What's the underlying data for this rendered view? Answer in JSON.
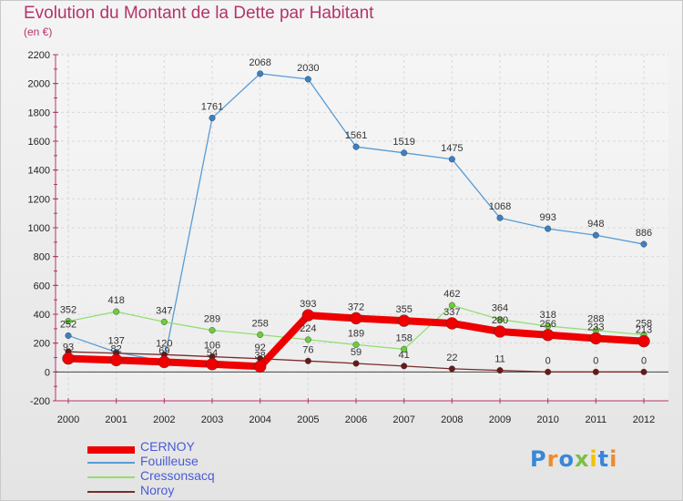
{
  "chart_data": {
    "type": "line",
    "title": "Evolution du Montant de la Dette par Habitant",
    "subtitle": "(en €)",
    "x": [
      "2000",
      "2001",
      "2002",
      "2003",
      "2004",
      "2005",
      "2006",
      "2007",
      "2008",
      "2009",
      "2010",
      "2011",
      "2012"
    ],
    "ylim": [
      -200,
      2200
    ],
    "yticks": [
      -200,
      0,
      200,
      400,
      600,
      800,
      1000,
      1200,
      1400,
      1600,
      1800,
      2000,
      2200
    ],
    "grid": true,
    "legend_position": "bottom-left",
    "series": [
      {
        "name": "Fouilleuse",
        "color": "#5a9bd4",
        "point_color": "#3a80c4",
        "width": 1.3,
        "values": [
          252,
          137,
          74,
          1761,
          2068,
          2030,
          1561,
          1519,
          1475,
          1068,
          993,
          948,
          886
        ],
        "labels": [
          "252",
          "137",
          "",
          "1761",
          "2068",
          "2030",
          "1561",
          "1519",
          "1475",
          "1068",
          "993",
          "948",
          "886"
        ]
      },
      {
        "name": "Cressonsacq",
        "color": "#90e070",
        "point_color": "#6ccc3c",
        "width": 1.3,
        "values": [
          352,
          418,
          347,
          289,
          258,
          224,
          189,
          158,
          462,
          364,
          318,
          288,
          258
        ],
        "labels": [
          "352",
          "418",
          "347",
          "289",
          "258",
          "224",
          "189",
          "158",
          "462",
          "364",
          "318",
          "288",
          "258"
        ]
      },
      {
        "name": "Noroy",
        "color": "#7a2a2a",
        "point_color": "#6a1818",
        "width": 1.3,
        "values": [
          140,
          130,
          120,
          106,
          92,
          76,
          59,
          41,
          22,
          11,
          0,
          0,
          0
        ],
        "labels": [
          "",
          "",
          "120",
          "106",
          "92",
          "76",
          "59",
          "41",
          "22",
          "11",
          "0",
          "0",
          "0"
        ]
      },
      {
        "name": "CERNOY",
        "color": "#ee0000",
        "point_color": "#ee0000",
        "width": 8,
        "values": [
          93,
          82,
          69,
          54,
          38,
          393,
          372,
          355,
          337,
          280,
          256,
          233,
          213
        ],
        "labels": [
          "93",
          "82",
          "69",
          "54",
          "38",
          "393",
          "372",
          "355",
          "337",
          "280",
          "256",
          "233",
          "213"
        ]
      }
    ],
    "legend_order": [
      "CERNOY",
      "Fouilleuse",
      "Cressonsacq",
      "Noroy"
    ]
  },
  "logo": {
    "text": "Proxiti",
    "letters": [
      "P",
      "r",
      "o",
      "x",
      "i",
      "t",
      "i"
    ],
    "colors": [
      "#3a86d8",
      "#f08a2a",
      "#3a86d8",
      "#7bc043",
      "#f2c200",
      "#3a86d8",
      "#f08a2a"
    ]
  }
}
